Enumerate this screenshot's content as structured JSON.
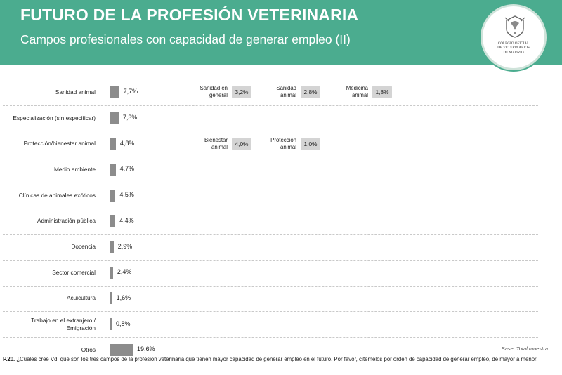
{
  "header": {
    "title": "FUTURO DE LA PROFESIÓN VETERINARIA",
    "subtitle": "Campos profesionales con capacidad de generar empleo (II)",
    "logo_text": "COLEGIO OFICIAL\nDE VETERINARIOS\nDE MADRID",
    "color": "#4bac8f"
  },
  "chart_data": {
    "type": "bar",
    "orientation": "horizontal",
    "categories": [
      "Sanidad animal",
      "Especialización (sin especificar)",
      "Protección/bienestar animal",
      "Medio ambiente",
      "Clínicas de animales exóticos",
      "Administración pública",
      "Docencia",
      "Sector comercial",
      "Acuicultura",
      "Trabajo en el extranjero /\nEmigración",
      "Otros"
    ],
    "values": [
      7.7,
      7.3,
      4.8,
      4.7,
      4.5,
      4.4,
      2.9,
      2.4,
      1.6,
      0.8,
      19.6
    ],
    "value_labels": [
      "7,7%",
      "7,3%",
      "4,8%",
      "4,7%",
      "4,5%",
      "4,4%",
      "2,9%",
      "2,4%",
      "1,6%",
      "0,8%",
      "19,6%"
    ],
    "bar_color": "#8c8c8c",
    "breakdowns": [
      {
        "category": "Sanidad animal",
        "items": [
          {
            "label": "Sanidad en\ngeneral",
            "value": 3.2,
            "value_label": "3,2%"
          },
          {
            "label": "Sanidad\nanimal",
            "value": 2.8,
            "value_label": "2,8%"
          },
          {
            "label": "Medicina\nanimal",
            "value": 1.8,
            "value_label": "1,8%"
          }
        ]
      },
      {
        "category": "Protección/bienestar animal",
        "items": [
          {
            "label": "Bienestar\nanimal",
            "value": 4.0,
            "value_label": "4,0%"
          },
          {
            "label": "Protección\nanimal",
            "value": 1.0,
            "value_label": "1,0%"
          }
        ]
      }
    ]
  },
  "base_note": "Base: Total muestra",
  "footnote": {
    "prefix": "P.20.",
    "text": " ¿Cuáles cree Vd. que son los tres campos de la profesión veterinaria que tienen mayor capacidad de generar empleo en el futuro. Por favor, cítemelos por orden de capacidad de generar empleo, de mayor a menor."
  }
}
